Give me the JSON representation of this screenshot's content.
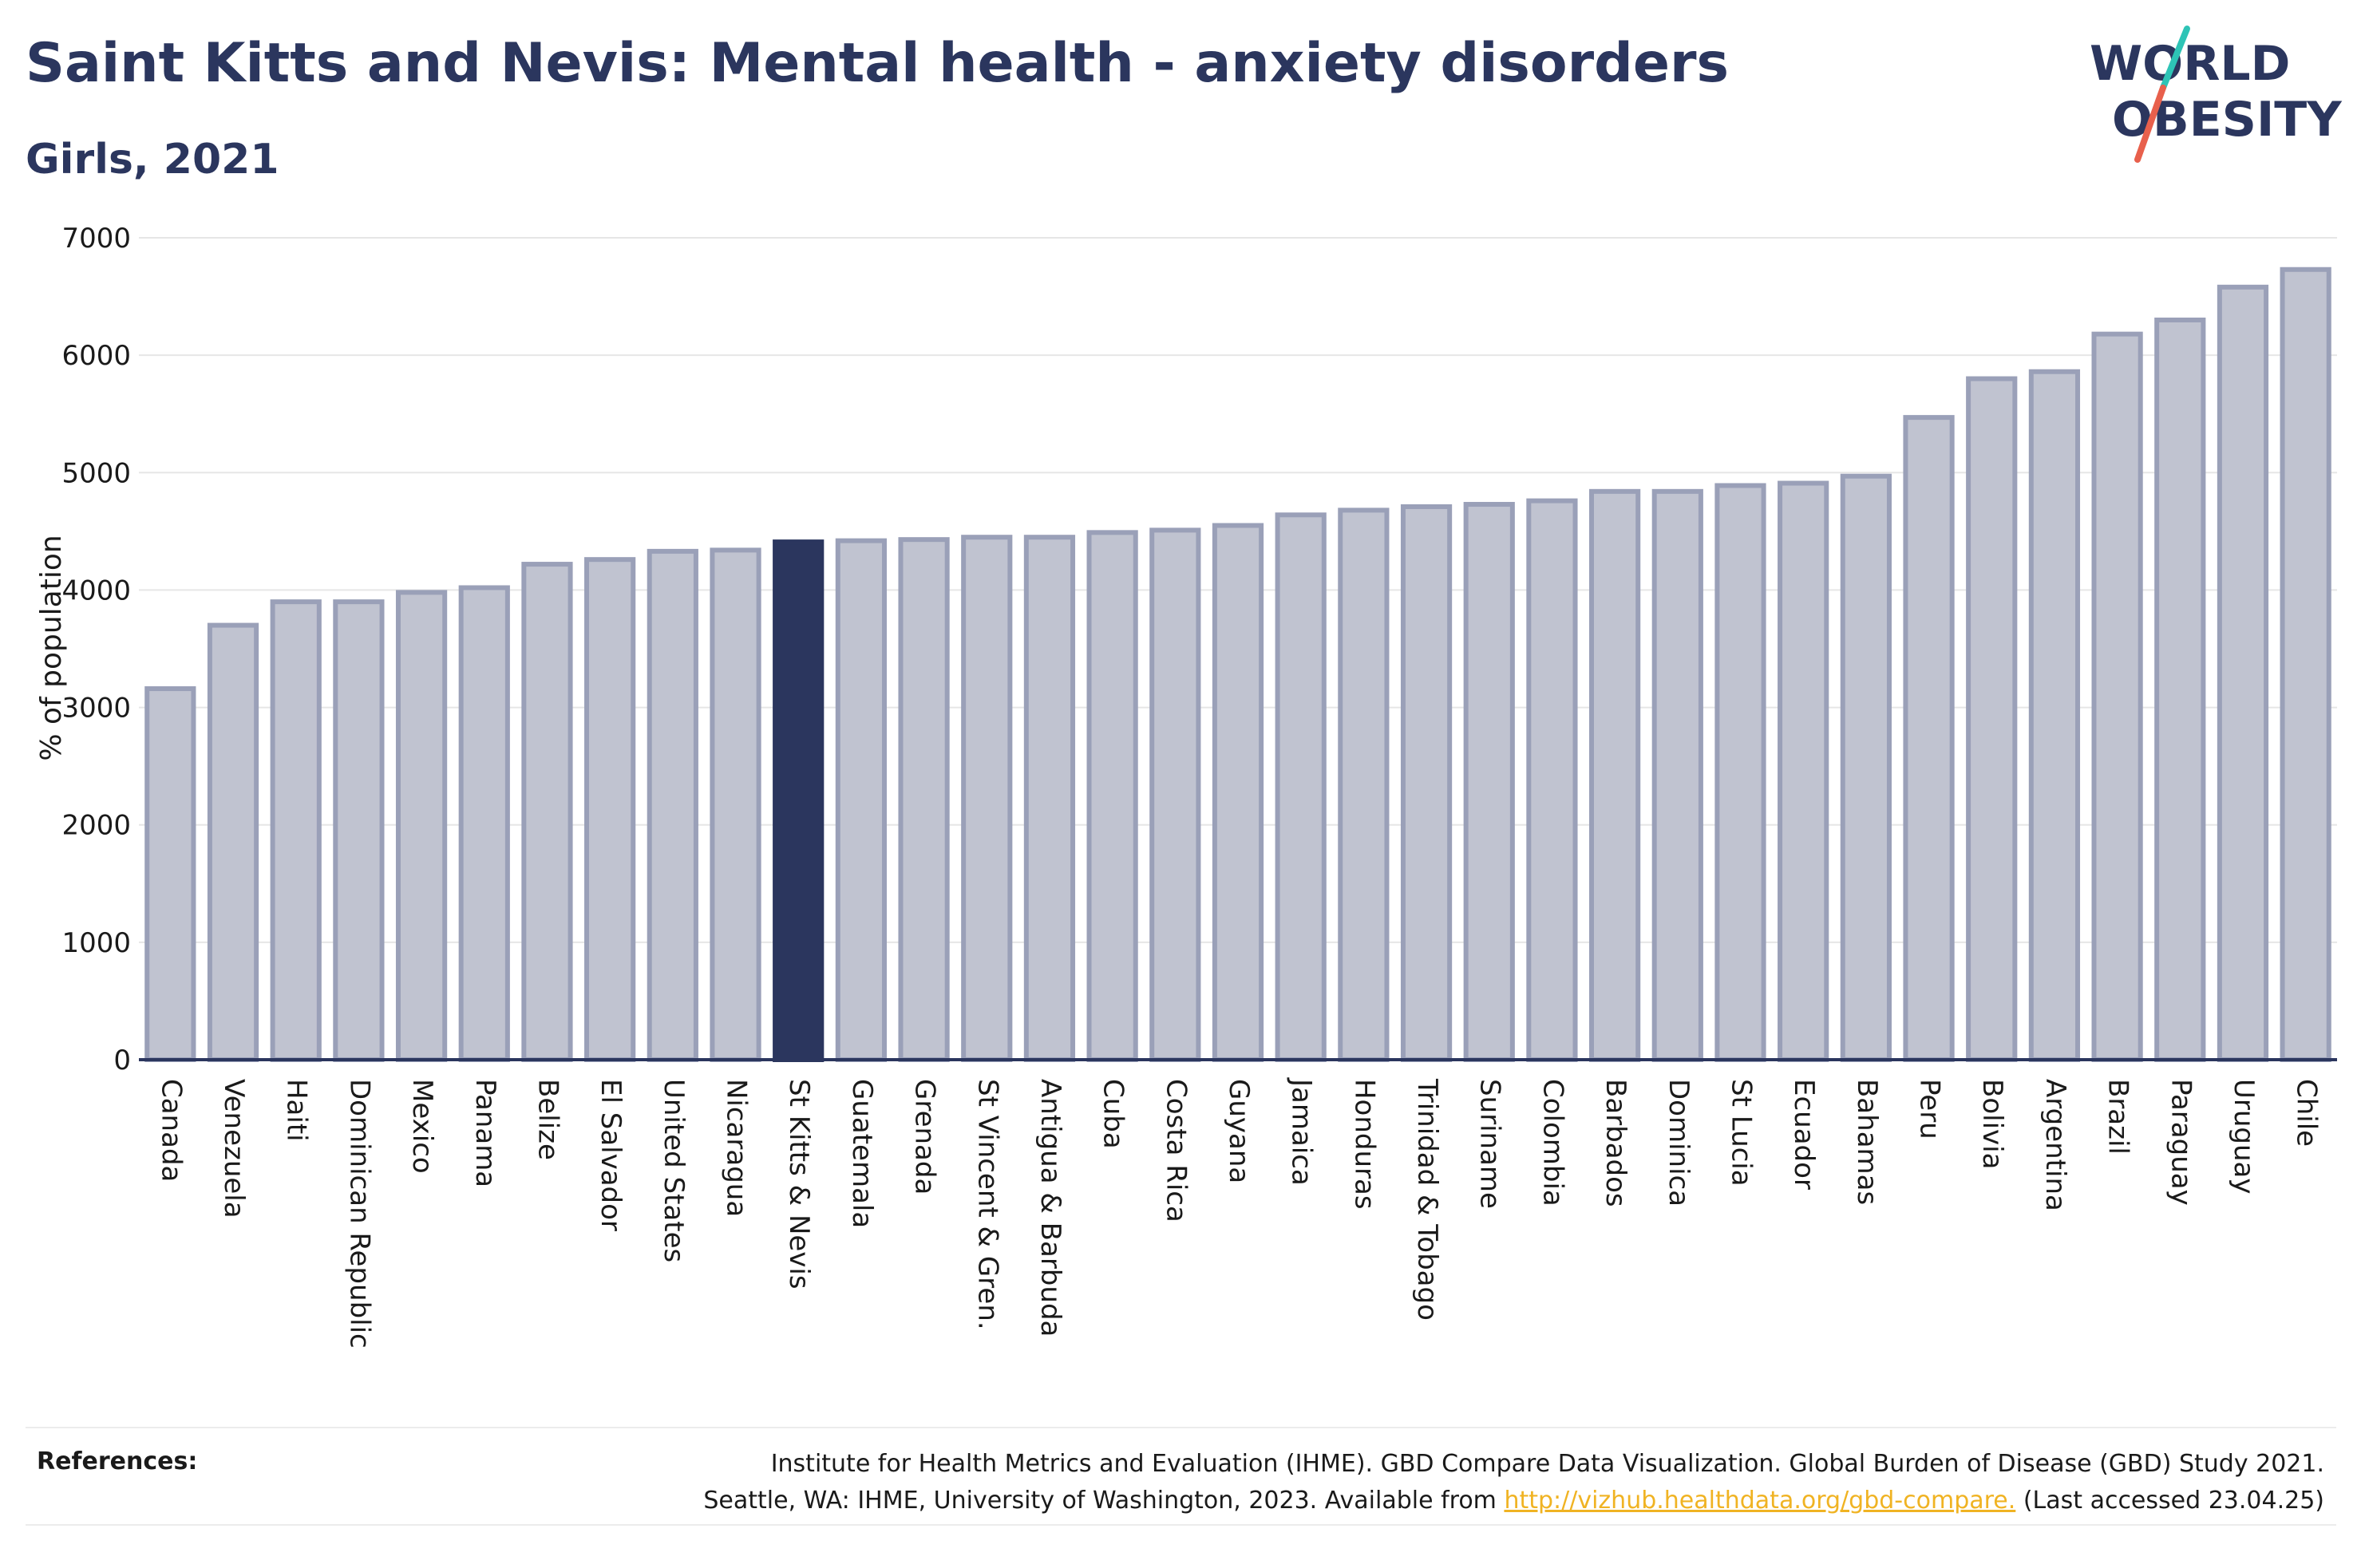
{
  "header": {
    "title": "Saint Kitts and Nevis: Mental health - anxiety disorders",
    "subtitle": "Girls, 2021"
  },
  "logo": {
    "line1": "WORLD",
    "line2": "OBESITY",
    "colors": {
      "text": "#2b365e",
      "slash_top": "#2ec4b6",
      "slash_bottom": "#e8604c"
    }
  },
  "references": {
    "label": "References:",
    "line1": "Institute for Health Metrics and Evaluation (IHME). GBD Compare Data Visualization. Global Burden of Disease (GBD) Study 2021.",
    "line2_prefix": "Seattle, WA: IHME, University of Washington, 2023. Available from ",
    "link_text": "http://vizhub.healthdata.org/gbd-compare.",
    "line2_suffix": " (Last accessed 23.04.25)"
  },
  "colors": {
    "bar_fill": "#c0c3d0",
    "bar_stroke": "#9aa0b8",
    "highlight_fill": "#2b365e",
    "axis": "#2b365e",
    "grid": "#e6e6e6"
  },
  "chart_data": {
    "type": "bar",
    "title": "Saint Kitts and Nevis: Mental health - anxiety disorders",
    "subtitle": "Girls, 2021",
    "xlabel": "",
    "ylabel": "% of population",
    "ylim": [
      0,
      7000
    ],
    "yticks": [
      0,
      1000,
      2000,
      3000,
      4000,
      5000,
      6000,
      7000
    ],
    "grid": true,
    "highlight": "St Kitts & Nevis",
    "categories": [
      "Canada",
      "Venezuela",
      "Haiti",
      "Dominican Republic",
      "Mexico",
      "Panama",
      "Belize",
      "El Salvador",
      "United States",
      "Nicaragua",
      "St Kitts & Nevis",
      "Guatemala",
      "Grenada",
      "St Vincent & Gren.",
      "Antigua & Barbuda",
      "Cuba",
      "Costa Rica",
      "Guyana",
      "Jamaica",
      "Honduras",
      "Trinidad & Tobago",
      "Suriname",
      "Colombia",
      "Barbados",
      "Dominica",
      "St Lucia",
      "Ecuador",
      "Bahamas",
      "Peru",
      "Bolivia",
      "Argentina",
      "Brazil",
      "Paraguay",
      "Uruguay",
      "Chile"
    ],
    "values": [
      3160,
      3700,
      3900,
      3900,
      3980,
      4020,
      4220,
      4260,
      4330,
      4340,
      4410,
      4420,
      4430,
      4450,
      4450,
      4490,
      4510,
      4550,
      4640,
      4680,
      4710,
      4730,
      4760,
      4840,
      4840,
      4890,
      4910,
      4970,
      5470,
      5800,
      5860,
      6180,
      6300,
      6580,
      6730
    ]
  }
}
